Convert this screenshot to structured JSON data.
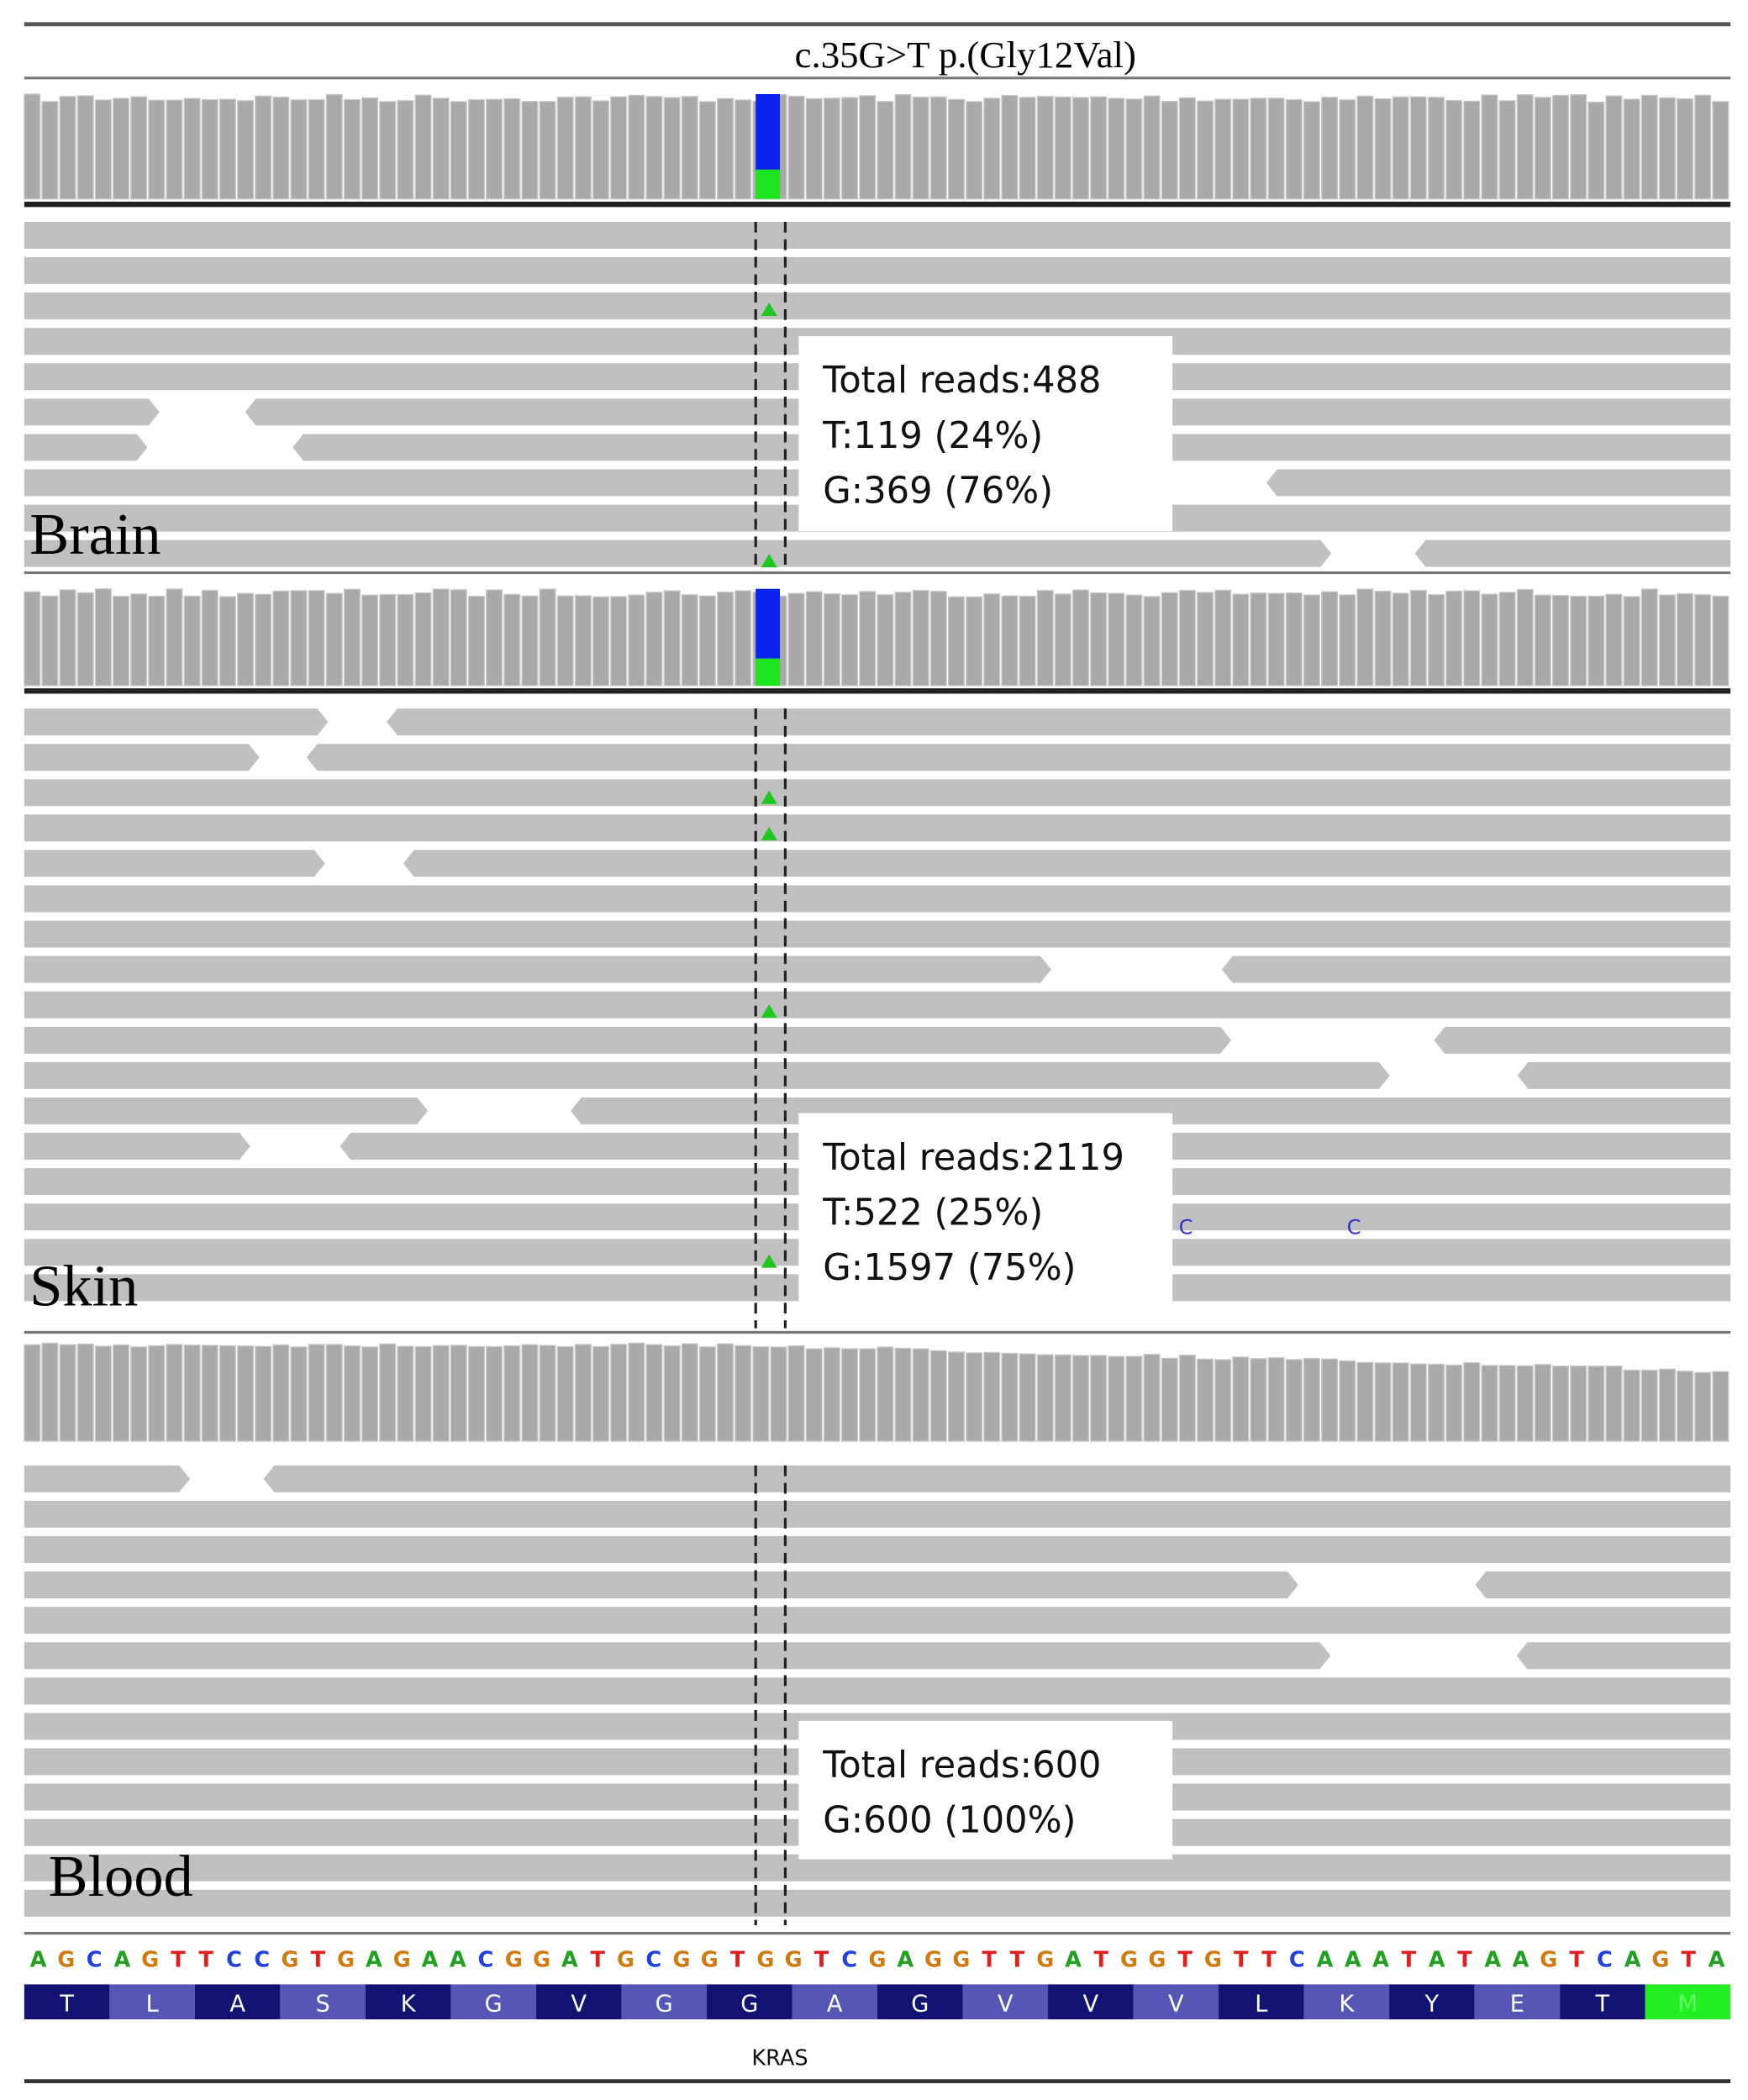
{
  "title": "c.35G>T p.(Gly12Val)",
  "panels": [
    {
      "label": "Brain",
      "stats": [
        "Total reads:488",
        "T:119 (24%)",
        "G:369 (76%)"
      ],
      "mismatches": []
    },
    {
      "label": "Skin",
      "stats": [
        "Total reads:2119",
        "T:522 (25%)",
        "G:1597 (75%)"
      ],
      "mismatches": [
        "C",
        "C"
      ]
    },
    {
      "label": "Blood",
      "stats": [
        "Total reads:600",
        "G:600 (100%)"
      ],
      "mismatches": []
    }
  ],
  "sequence": [
    "A",
    "G",
    "C",
    "A",
    "G",
    "T",
    "T",
    "C",
    "C",
    "G",
    "T",
    "G",
    "A",
    "G",
    "A",
    "A",
    "C",
    "G",
    "G",
    "A",
    "T",
    "G",
    "C",
    "G",
    "G",
    "T",
    "G",
    "G",
    "T",
    "C",
    "G",
    "A",
    "G",
    "G",
    "T",
    "T",
    "G",
    "A",
    "T",
    "G",
    "G",
    "T",
    "G",
    "T",
    "T",
    "C",
    "A",
    "A",
    "A",
    "T",
    "A",
    "T",
    "A",
    "A",
    "G",
    "T",
    "C",
    "A",
    "G",
    "T",
    "A"
  ],
  "amino_acids": [
    "T",
    "L",
    "A",
    "S",
    "K",
    "G",
    "V",
    "G",
    "G",
    "A",
    "G",
    "V",
    "V",
    "V",
    "L",
    "K",
    "Y",
    "E",
    "T",
    "M"
  ],
  "gene": "KRAS"
}
